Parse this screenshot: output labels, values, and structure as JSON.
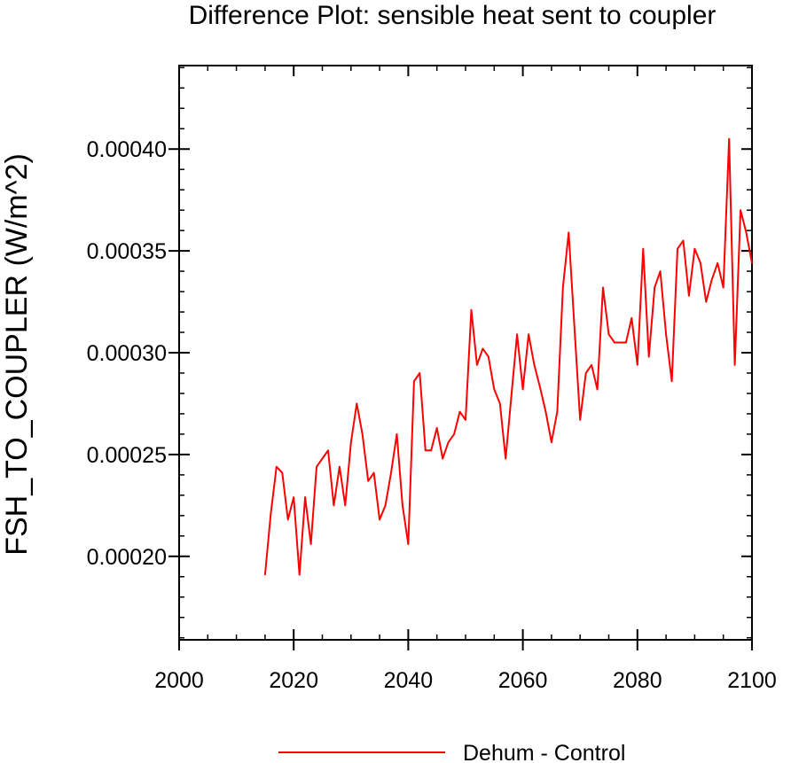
{
  "chart_data": {
    "type": "line",
    "title": "Difference Plot: sensible heat sent to coupler",
    "xlabel": "",
    "ylabel": "FSH_TO_COUPLER  (W/m^2)",
    "xlim": [
      2000,
      2100
    ],
    "ylim": [
      0.000159,
      0.000441
    ],
    "x_ticks": [
      2000,
      2020,
      2040,
      2060,
      2080,
      2100
    ],
    "x_tick_labels": [
      "2000",
      "2020",
      "2040",
      "2060",
      "2080",
      "2100"
    ],
    "y_ticks": [
      0.0002,
      0.00025,
      0.0003,
      0.00035,
      0.0004
    ],
    "y_tick_labels": [
      "0.00020",
      "0.00025",
      "0.00030",
      "0.00035",
      "0.00040"
    ],
    "grid": false,
    "legend_position": "bottom",
    "series": [
      {
        "name": "Dehum - Control",
        "color": "#ff0000",
        "x": [
          2015,
          2016,
          2017,
          2018,
          2019,
          2020,
          2021,
          2022,
          2023,
          2024,
          2025,
          2026,
          2027,
          2028,
          2029,
          2030,
          2031,
          2032,
          2033,
          2034,
          2035,
          2036,
          2037,
          2038,
          2039,
          2040,
          2041,
          2042,
          2043,
          2044,
          2045,
          2046,
          2047,
          2048,
          2049,
          2050,
          2051,
          2052,
          2053,
          2054,
          2055,
          2056,
          2057,
          2058,
          2059,
          2060,
          2061,
          2062,
          2063,
          2064,
          2065,
          2066,
          2067,
          2068,
          2069,
          2070,
          2071,
          2072,
          2073,
          2074,
          2075,
          2076,
          2077,
          2078,
          2079,
          2080,
          2081,
          2082,
          2083,
          2084,
          2085,
          2086,
          2087,
          2088,
          2089,
          2090,
          2091,
          2092,
          2093,
          2094,
          2095,
          2096,
          2097,
          2098,
          2099,
          2100
        ],
        "y": [
          0.000191,
          0.000221,
          0.000244,
          0.000241,
          0.000218,
          0.000229,
          0.000191,
          0.000229,
          0.000206,
          0.000244,
          0.000248,
          0.000252,
          0.000225,
          0.000244,
          0.000225,
          0.000256,
          0.000275,
          0.00026,
          0.000237,
          0.000241,
          0.000218,
          0.000225,
          0.000241,
          0.00026,
          0.000225,
          0.000206,
          0.000286,
          0.00029,
          0.000252,
          0.000252,
          0.000263,
          0.000248,
          0.000256,
          0.00026,
          0.000271,
          0.000267,
          0.000321,
          0.000294,
          0.000302,
          0.000298,
          0.000282,
          0.000275,
          0.000248,
          0.000279,
          0.000309,
          0.000282,
          0.000309,
          0.000294,
          0.000283,
          0.000271,
          0.000256,
          0.000271,
          0.000332,
          0.000359,
          0.000313,
          0.000267,
          0.00029,
          0.000294,
          0.000282,
          0.000332,
          0.000309,
          0.000305,
          0.000305,
          0.000305,
          0.000317,
          0.000294,
          0.000351,
          0.000298,
          0.000332,
          0.00034,
          0.000309,
          0.000286,
          0.000351,
          0.000355,
          0.000328,
          0.000351,
          0.000344,
          0.000325,
          0.000336,
          0.000344,
          0.000332,
          0.000405,
          0.000294,
          0.00037,
          0.000359,
          0.000344
        ]
      }
    ]
  }
}
